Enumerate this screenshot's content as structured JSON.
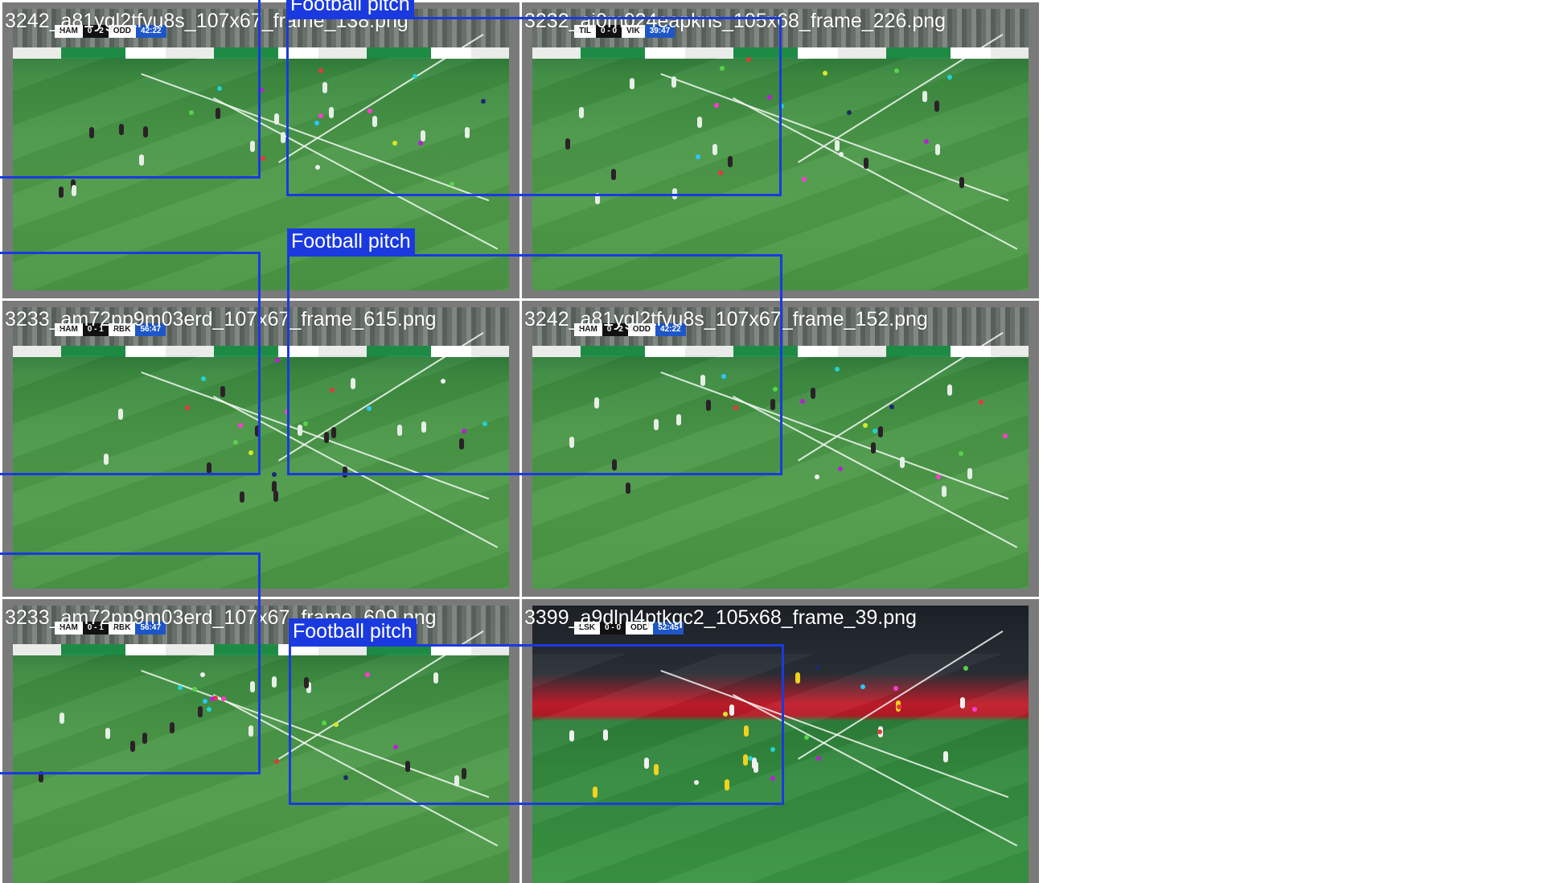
{
  "tiles": [
    {
      "filename": "3242_a81ygl2tfvu8s_107x67_frame_138.png",
      "scorebug": {
        "home": "HAM",
        "score": "0 - 2",
        "away": "ODD",
        "clock": "42:22"
      },
      "scene": "day"
    },
    {
      "filename": "3232_ai0m024eapkns_105x68_frame_226.png",
      "scorebug": {
        "home": "TIL",
        "score": "0 - 0",
        "away": "VIK",
        "clock": "39:47"
      },
      "scene": "day"
    },
    {
      "filename": "3233_am72pp9m03erd_107x67_frame_615.png",
      "scorebug": {
        "home": "HAM",
        "score": "0 - 1",
        "away": "RBK",
        "clock": "56:47"
      },
      "scene": "day"
    },
    {
      "filename": "3242_a81ygl2tfvu8s_107x67_frame_152.png",
      "scorebug": {
        "home": "HAM",
        "score": "0 - 2",
        "away": "ODD",
        "clock": "42:22"
      },
      "scene": "day"
    },
    {
      "filename": "3233_am72pp9m03erd_107x67_frame_609.png",
      "scorebug": {
        "home": "HAM",
        "score": "0 - 1",
        "away": "RBK",
        "clock": "56:47"
      },
      "scene": "day"
    },
    {
      "filename": "3399_a9dlnl4ptkqc2_105x68_frame_39.png",
      "scorebug": {
        "home": "LSK",
        "score": "0 - 0",
        "away": "ODD",
        "clock": "52:45"
      },
      "scene": "night"
    }
  ],
  "detections": [
    {
      "label": "Football pitch"
    },
    {
      "label": ""
    },
    {
      "label": "Football pitch"
    },
    {
      "label": ""
    },
    {
      "label": "Football pitch"
    },
    {
      "label": ""
    }
  ],
  "colors": {
    "bbox": "#1a3adf",
    "tile_border": "#7a7a7a",
    "keypoints": [
      "#ff3bd4",
      "#b81fd6",
      "#22d3d3",
      "#e23a3a",
      "#57d34a",
      "#d6e82a",
      "#1f2a6b",
      "#2ac6ff",
      "#f0f0f0"
    ]
  }
}
